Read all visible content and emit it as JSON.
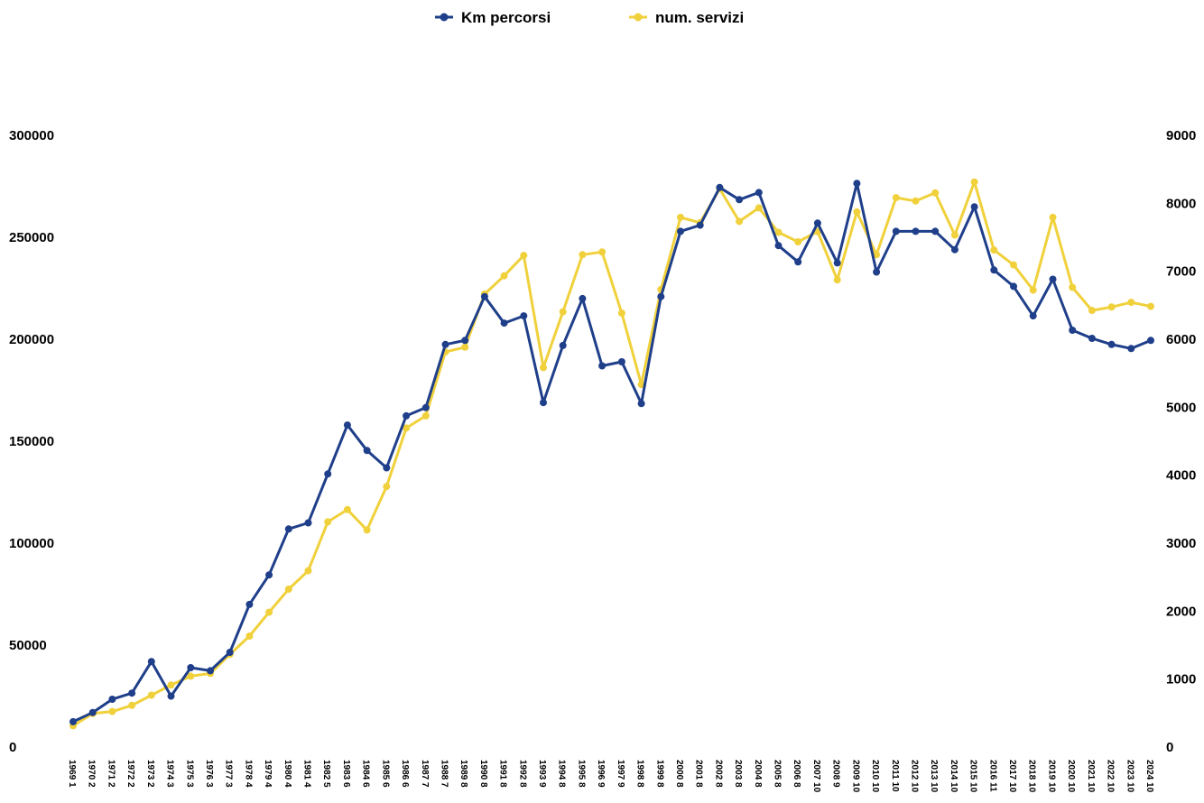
{
  "chart_data": {
    "type": "line",
    "legend_position": "top",
    "grid": false,
    "y_left": {
      "min": 0,
      "max": 300000,
      "ticks": [
        "0",
        "50000",
        "100000",
        "150000",
        "200000",
        "250000",
        "300000"
      ]
    },
    "y_right": {
      "min": 0,
      "max": 9000,
      "ticks": [
        "0",
        "1000",
        "2000",
        "3000",
        "4000",
        "5000",
        "6000",
        "7000",
        "8000",
        "9000"
      ]
    },
    "categories": [
      "1969",
      "1970",
      "1971",
      "1972",
      "1973",
      "1974",
      "1975",
      "1976",
      "1977",
      "1978",
      "1979",
      "1980",
      "1981",
      "1982",
      "1983",
      "1984",
      "1985",
      "1986",
      "1987",
      "1988",
      "1989",
      "1990",
      "1991",
      "1992",
      "1993",
      "1994",
      "1995",
      "1996",
      "1997",
      "1998",
      "1999",
      "2000",
      "2001",
      "2002",
      "2003",
      "2004",
      "2005",
      "2006",
      "2007",
      "2008",
      "2009",
      "2010",
      "2011",
      "2012",
      "2013",
      "2014",
      "2015",
      "2016",
      "2017",
      "2018",
      "2019",
      "2020",
      "2021",
      "2022",
      "2023",
      "2024"
    ],
    "category_suffix": [
      "1",
      "2",
      "2",
      "2",
      "2",
      "3",
      "3",
      "3",
      "3",
      "4",
      "4",
      "4",
      "4",
      "5",
      "6",
      "6",
      "6",
      "6",
      "7",
      "7",
      "8",
      "8",
      "8",
      "8",
      "9",
      "8",
      "8",
      "9",
      "9",
      "8",
      "8",
      "8",
      "8",
      "8",
      "8",
      "8",
      "8",
      "8",
      "10",
      "9",
      "10",
      "10",
      "10",
      "10",
      "10",
      "10",
      "10",
      "11",
      "10",
      "10",
      "10",
      "10",
      "10",
      "10",
      "10",
      "10"
    ],
    "series": [
      {
        "name": "Km percorsi",
        "axis": "left",
        "color": "#1f3f8a",
        "values": [
          12000,
          16500,
          23000,
          26000,
          41500,
          24500,
          38500,
          37000,
          46000,
          69500,
          84000,
          106500,
          109500,
          133500,
          157500,
          145000,
          136500,
          162000,
          166000,
          197000,
          199000,
          220500,
          207500,
          211000,
          168500,
          196500,
          219500,
          186500,
          188500,
          168000,
          220500,
          252500,
          255500,
          274000,
          268000,
          271500,
          245500,
          237500,
          256500,
          237000,
          276000,
          232500,
          252500,
          252500,
          252500,
          243500,
          264500,
          233500,
          225500,
          211000,
          229000,
          204000,
          200000,
          197000,
          195000,
          199000
        ]
      },
      {
        "name": "num. servizi",
        "axis": "right",
        "color": "#f0d13c",
        "values": [
          300,
          480,
          510,
          600,
          750,
          900,
          1030,
          1070,
          1350,
          1620,
          1970,
          2310,
          2580,
          3300,
          3480,
          3180,
          3820,
          4680,
          4860,
          5800,
          5870,
          6650,
          6920,
          7220,
          5570,
          6390,
          7230,
          7270,
          6370,
          5320,
          6720,
          7780,
          7700,
          8200,
          7720,
          7920,
          7560,
          7420,
          7570,
          6860,
          7860,
          7230,
          8070,
          8020,
          8140,
          7520,
          8300,
          7300,
          7080,
          6710,
          7780,
          6750,
          6410,
          6460,
          6530,
          6470
        ]
      }
    ]
  }
}
